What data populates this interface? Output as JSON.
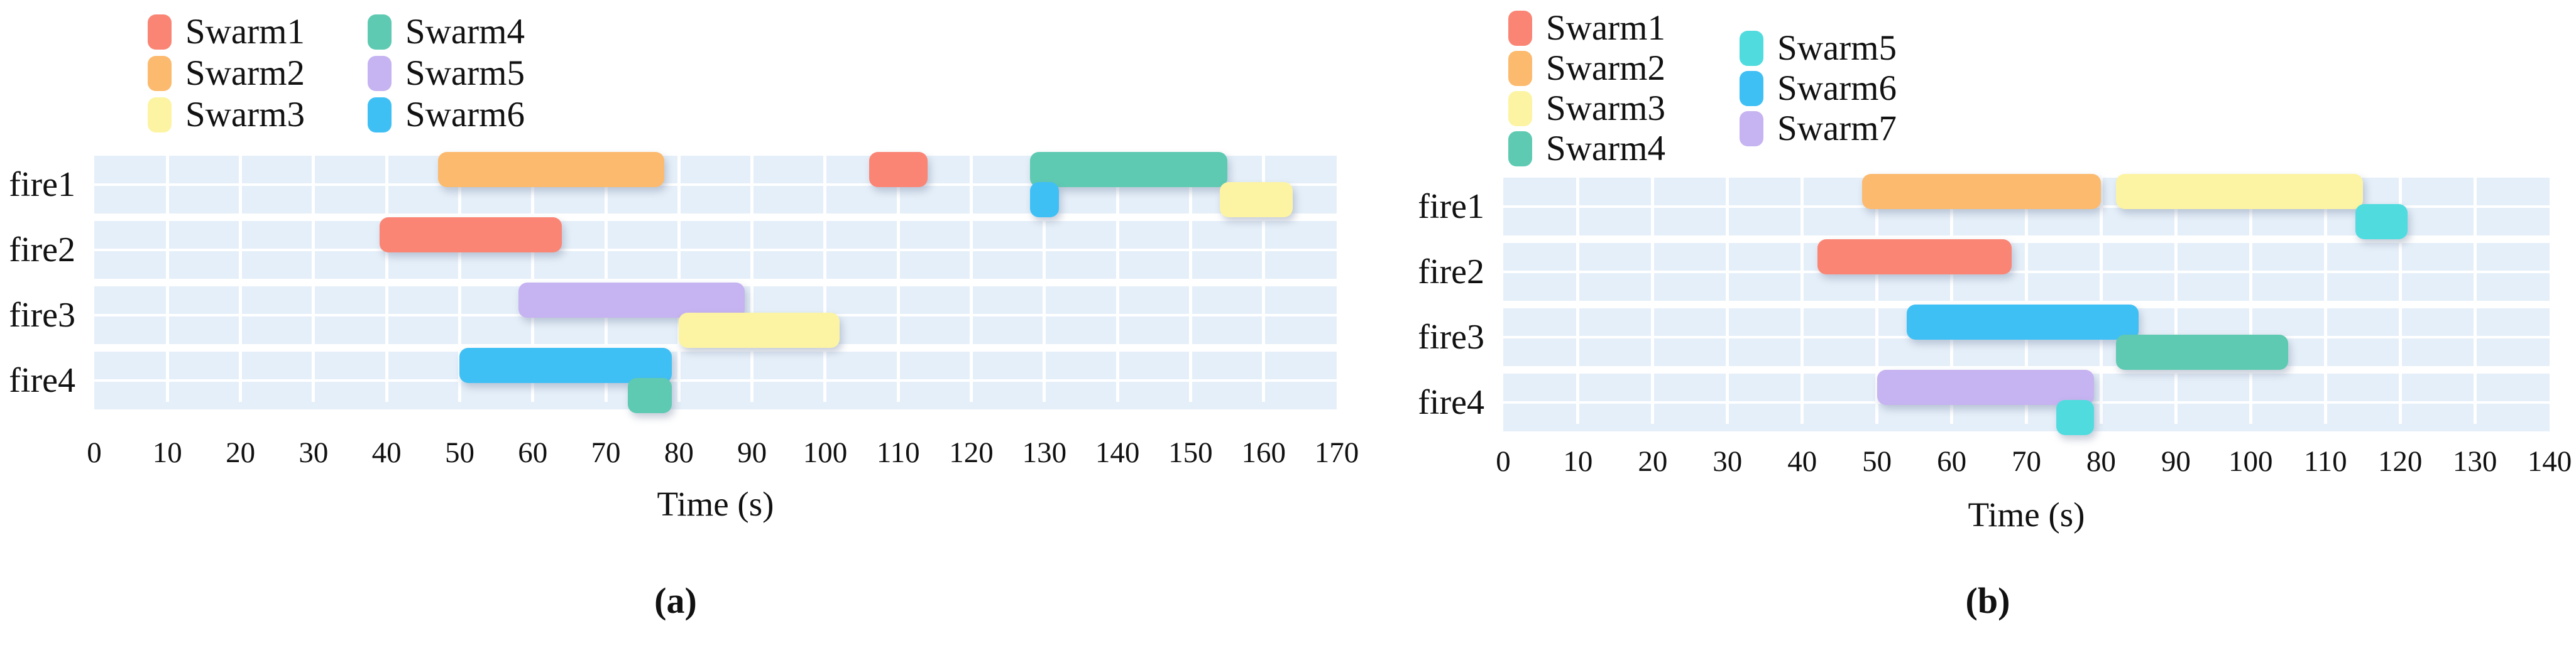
{
  "chart_data": [
    {
      "type": "gantt",
      "panel": "a",
      "caption": "(a)",
      "xlabel": "Time (s)",
      "xlim": [
        0,
        170
      ],
      "x_tick_step": 10,
      "x_ticks": [
        0,
        10,
        20,
        30,
        40,
        50,
        60,
        70,
        80,
        90,
        100,
        110,
        120,
        130,
        140,
        150,
        160,
        170
      ],
      "rows": [
        "fire1",
        "fire2",
        "fire3",
        "fire4"
      ],
      "grid": "white-on-lightblue",
      "legend_position": "top-left",
      "legend_columns": [
        3,
        3
      ],
      "legend": [
        {
          "label": "Swarm1",
          "color": "#FA8575"
        },
        {
          "label": "Swarm2",
          "color": "#FCBA6E"
        },
        {
          "label": "Swarm3",
          "color": "#FCF4A3"
        },
        {
          "label": "Swarm4",
          "color": "#5ECAB2"
        },
        {
          "label": "Swarm5",
          "color": "#C6B3F1"
        },
        {
          "label": "Swarm6",
          "color": "#3FC0F5"
        }
      ],
      "bars": [
        {
          "row": "fire1",
          "lane": 0,
          "swarm": "Swarm2",
          "start": 47,
          "end": 78
        },
        {
          "row": "fire1",
          "lane": 0,
          "swarm": "Swarm1",
          "start": 106,
          "end": 114
        },
        {
          "row": "fire1",
          "lane": 0,
          "swarm": "Swarm4",
          "start": 128,
          "end": 155
        },
        {
          "row": "fire1",
          "lane": 1,
          "swarm": "Swarm6",
          "start": 128,
          "end": 132
        },
        {
          "row": "fire1",
          "lane": 1,
          "swarm": "Swarm3",
          "start": 154,
          "end": 164
        },
        {
          "row": "fire2",
          "lane": 0,
          "swarm": "Swarm1",
          "start": 39,
          "end": 64
        },
        {
          "row": "fire3",
          "lane": 0,
          "swarm": "Swarm5",
          "start": 58,
          "end": 89
        },
        {
          "row": "fire3",
          "lane": 1,
          "swarm": "Swarm3",
          "start": 80,
          "end": 102
        },
        {
          "row": "fire4",
          "lane": 0,
          "swarm": "Swarm6",
          "start": 50,
          "end": 79
        },
        {
          "row": "fire4",
          "lane": 1,
          "swarm": "Swarm4",
          "start": 73,
          "end": 79
        }
      ]
    },
    {
      "type": "gantt",
      "panel": "b",
      "caption": "(b)",
      "xlabel": "Time (s)",
      "xlim": [
        0,
        140
      ],
      "x_tick_step": 10,
      "x_ticks": [
        0,
        10,
        20,
        30,
        40,
        50,
        60,
        70,
        80,
        90,
        100,
        110,
        120,
        130,
        140
      ],
      "rows": [
        "fire1",
        "fire2",
        "fire3",
        "fire4"
      ],
      "grid": "white-on-lightblue",
      "legend_position": "top-left",
      "legend_columns": [
        4,
        3
      ],
      "legend": [
        {
          "label": "Swarm1",
          "color": "#FA8575"
        },
        {
          "label": "Swarm2",
          "color": "#FCBA6E"
        },
        {
          "label": "Swarm3",
          "color": "#FCF4A3"
        },
        {
          "label": "Swarm4",
          "color": "#5ECAB2"
        },
        {
          "label": "Swarm5",
          "color": "#50DCDF"
        },
        {
          "label": "Swarm6",
          "color": "#3FC0F5"
        },
        {
          "label": "Swarm7",
          "color": "#C6B3F1"
        }
      ],
      "bars": [
        {
          "row": "fire1",
          "lane": 0,
          "swarm": "Swarm2",
          "start": 48,
          "end": 80
        },
        {
          "row": "fire1",
          "lane": 0,
          "swarm": "Swarm3",
          "start": 82,
          "end": 115
        },
        {
          "row": "fire1",
          "lane": 1,
          "swarm": "Swarm5",
          "start": 114,
          "end": 121
        },
        {
          "row": "fire2",
          "lane": 0,
          "swarm": "Swarm1",
          "start": 42,
          "end": 68
        },
        {
          "row": "fire3",
          "lane": 0,
          "swarm": "Swarm6",
          "start": 54,
          "end": 85
        },
        {
          "row": "fire3",
          "lane": 1,
          "swarm": "Swarm4",
          "start": 82,
          "end": 105
        },
        {
          "row": "fire4",
          "lane": 0,
          "swarm": "Swarm7",
          "start": 50,
          "end": 79
        },
        {
          "row": "fire4",
          "lane": 1,
          "swarm": "Swarm5",
          "start": 74,
          "end": 79
        }
      ]
    }
  ],
  "colors": {
    "plot_band_background": "#E5EFF9",
    "gridline": "#FFFFFF",
    "text": "#111111"
  }
}
